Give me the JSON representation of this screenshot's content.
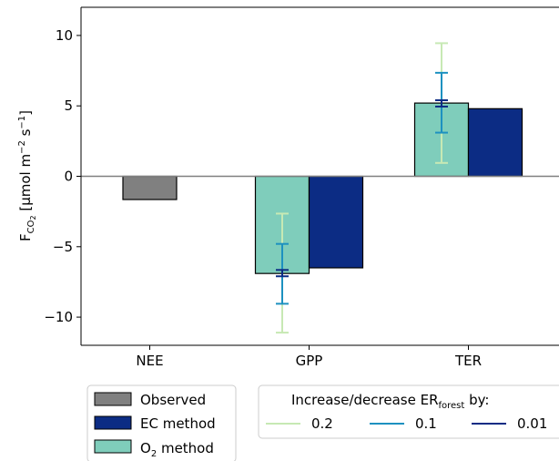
{
  "chart_data": {
    "type": "bar",
    "categories": [
      "NEE",
      "GPP",
      "TER"
    ],
    "series": [
      {
        "name": "Observed",
        "color": "#808080",
        "values": [
          -1.65,
          null,
          null
        ]
      },
      {
        "name": "O",
        "name_sub": "2",
        "name_tail": " method",
        "color": "#7fcdbb",
        "values": [
          null,
          -6.9,
          5.2
        ]
      },
      {
        "name": "EC method",
        "color": "#0c2c84",
        "values": [
          null,
          -6.5,
          4.8
        ]
      }
    ],
    "error_bars": [
      {
        "name": "0.2",
        "color": "#c7e9b4",
        "series": "O2 method",
        "points": [
          {
            "category": "GPP",
            "low": -11.1,
            "high": -2.65
          },
          {
            "category": "TER",
            "low": 0.95,
            "high": 9.45
          }
        ]
      },
      {
        "name": "0.1",
        "color": "#1d91c0",
        "series": "O2 method",
        "points": [
          {
            "category": "GPP",
            "low": -9.05,
            "high": -4.8
          },
          {
            "category": "TER",
            "low": 3.1,
            "high": 7.35
          }
        ]
      },
      {
        "name": "0.01",
        "color": "#0c2c84",
        "series": "O2 method",
        "points": [
          {
            "category": "GPP",
            "low": -7.1,
            "high": -6.65
          },
          {
            "category": "TER",
            "low": 4.95,
            "high": 5.4
          }
        ]
      }
    ],
    "ylabel": "F",
    "ylabel_sub": "CO",
    "ylabel_subsub": "2",
    "ylabel_unit": " [µmol m",
    "ylabel_sup1": "−2",
    "ylabel_mid": " s",
    "ylabel_sup2": "−1",
    "ylabel_end": "]",
    "ylim": [
      -12,
      12
    ],
    "yticks": [
      -10,
      -5,
      0,
      5,
      10
    ],
    "ytick_labels": [
      "−10",
      "−5",
      "0",
      "5",
      "10"
    ],
    "legend1": {
      "entries": [
        "Observed",
        "EC method",
        "O2 method"
      ]
    },
    "legend2": {
      "title": "Increase/decrease ER",
      "title_sub": "forest",
      "title_tail": " by:",
      "entries": [
        "0.2",
        "0.1",
        "0.01"
      ]
    }
  }
}
